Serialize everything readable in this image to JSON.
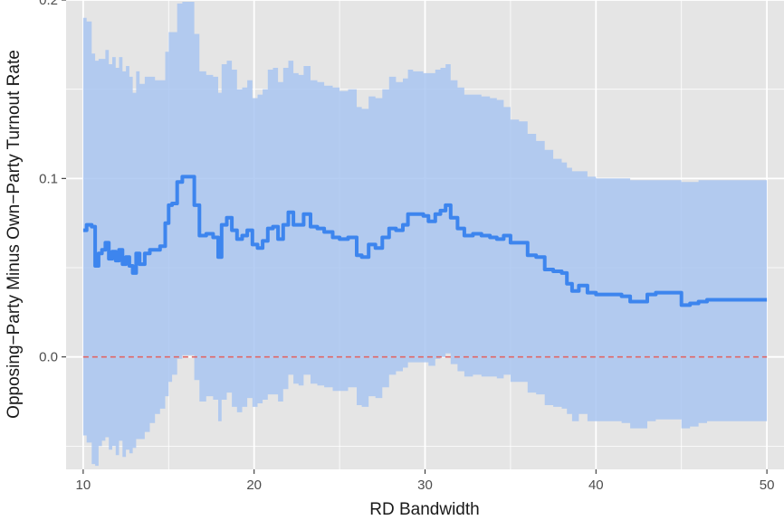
{
  "chart_data": {
    "type": "line",
    "title": "",
    "xlabel": "RD Bandwidth",
    "ylabel": "Opposing−Party Minus Own−Party Turnout Rate",
    "xlim": [
      9,
      51
    ],
    "ylim": [
      -0.063,
      0.2
    ],
    "x_ticks": [
      10,
      20,
      30,
      40,
      50
    ],
    "x_tick_labels": [
      "10",
      "20",
      "30",
      "40",
      "50"
    ],
    "y_ticks": [
      0.0,
      0.1,
      0.2
    ],
    "y_tick_labels": [
      "0.0",
      "0.1",
      "0.2"
    ],
    "grid": true,
    "reference_line": {
      "y": 0,
      "style": "dashed",
      "color": "#e06666"
    },
    "colors": {
      "panel_background": "#e5e5e5",
      "grid": "#ffffff",
      "line": "#3d85ee",
      "ribbon": "#a9c6f1"
    },
    "series": [
      {
        "x": [
          10.0,
          10.2,
          10.5,
          10.7,
          10.9,
          11.1,
          11.3,
          11.5,
          11.7,
          11.9,
          12.1,
          12.3,
          12.5,
          12.7,
          12.9,
          13.1,
          13.3,
          13.6,
          13.9,
          14.2,
          14.5,
          14.8,
          15.0,
          15.2,
          15.5,
          15.8,
          16.1,
          16.5,
          16.8,
          17.2,
          17.6,
          17.9,
          18.1,
          18.4,
          18.7,
          19.0,
          19.3,
          19.6,
          19.9,
          20.2,
          20.5,
          20.8,
          21.1,
          21.4,
          21.7,
          22.0,
          22.3,
          22.6,
          22.9,
          23.3,
          23.7,
          24.1,
          24.6,
          25.0,
          25.5,
          26.0,
          26.3,
          26.7,
          27.1,
          27.5,
          27.9,
          28.3,
          28.7,
          29.0,
          29.3,
          29.6,
          29.9,
          30.2,
          30.6,
          30.9,
          31.2,
          31.5,
          31.9,
          32.3,
          32.8,
          33.3,
          33.8,
          34.2,
          34.6,
          35.0,
          35.5,
          36.0,
          36.5,
          37.0,
          37.5,
          38.0,
          38.3,
          38.6,
          39.0,
          39.5,
          40.0,
          40.5,
          41.0,
          41.5,
          42.0,
          42.5,
          43.0,
          43.5,
          44.0,
          44.5,
          45.0,
          45.5,
          46.0,
          46.5,
          47.0,
          47.5,
          48.0,
          48.5,
          49.0,
          49.5,
          50.0
        ],
        "y": [
          0.071,
          0.074,
          0.073,
          0.051,
          0.058,
          0.06,
          0.064,
          0.055,
          0.059,
          0.054,
          0.06,
          0.052,
          0.056,
          0.051,
          0.047,
          0.058,
          0.052,
          0.058,
          0.06,
          0.06,
          0.062,
          0.075,
          0.085,
          0.086,
          0.098,
          0.101,
          0.101,
          0.085,
          0.068,
          0.069,
          0.067,
          0.056,
          0.074,
          0.078,
          0.071,
          0.066,
          0.068,
          0.071,
          0.063,
          0.061,
          0.065,
          0.072,
          0.073,
          0.066,
          0.074,
          0.081,
          0.074,
          0.074,
          0.08,
          0.073,
          0.072,
          0.07,
          0.067,
          0.066,
          0.067,
          0.057,
          0.056,
          0.063,
          0.061,
          0.067,
          0.072,
          0.071,
          0.074,
          0.08,
          0.08,
          0.08,
          0.079,
          0.076,
          0.08,
          0.082,
          0.085,
          0.078,
          0.072,
          0.068,
          0.069,
          0.068,
          0.067,
          0.066,
          0.068,
          0.064,
          0.064,
          0.057,
          0.056,
          0.049,
          0.048,
          0.047,
          0.041,
          0.037,
          0.04,
          0.036,
          0.035,
          0.035,
          0.035,
          0.034,
          0.031,
          0.031,
          0.035,
          0.036,
          0.036,
          0.036,
          0.029,
          0.03,
          0.031,
          0.032,
          0.032,
          0.032,
          0.032,
          0.032,
          0.032,
          0.032,
          0.032
        ],
        "lower": [
          -0.044,
          -0.048,
          -0.06,
          -0.061,
          -0.05,
          -0.047,
          -0.045,
          -0.052,
          -0.05,
          -0.055,
          -0.047,
          -0.056,
          -0.052,
          -0.054,
          -0.051,
          -0.046,
          -0.046,
          -0.042,
          -0.037,
          -0.032,
          -0.029,
          -0.022,
          -0.014,
          -0.01,
          -0.001,
          0.001,
          0.001,
          -0.013,
          -0.025,
          -0.022,
          -0.024,
          -0.036,
          -0.024,
          -0.02,
          -0.028,
          -0.031,
          -0.028,
          -0.023,
          -0.028,
          -0.026,
          -0.024,
          -0.021,
          -0.021,
          -0.025,
          -0.018,
          -0.01,
          -0.015,
          -0.016,
          -0.01,
          -0.015,
          -0.016,
          -0.017,
          -0.019,
          -0.019,
          -0.017,
          -0.027,
          -0.028,
          -0.022,
          -0.023,
          -0.017,
          -0.01,
          -0.008,
          -0.006,
          -0.003,
          -0.003,
          -0.003,
          -0.003,
          -0.005,
          -0.001,
          0.0,
          0.002,
          -0.004,
          -0.008,
          -0.011,
          -0.01,
          -0.011,
          -0.011,
          -0.012,
          -0.01,
          -0.014,
          -0.014,
          -0.02,
          -0.021,
          -0.027,
          -0.028,
          -0.029,
          -0.032,
          -0.036,
          -0.032,
          -0.036,
          -0.036,
          -0.036,
          -0.036,
          -0.037,
          -0.04,
          -0.04,
          -0.036,
          -0.035,
          -0.035,
          -0.035,
          -0.04,
          -0.039,
          -0.037,
          -0.036,
          -0.036,
          -0.036,
          -0.036,
          -0.036,
          -0.036,
          -0.036,
          -0.036
        ],
        "upper": [
          0.19,
          0.188,
          0.17,
          0.166,
          0.167,
          0.167,
          0.172,
          0.164,
          0.168,
          0.162,
          0.168,
          0.16,
          0.163,
          0.157,
          0.148,
          0.16,
          0.153,
          0.157,
          0.157,
          0.155,
          0.155,
          0.171,
          0.182,
          0.182,
          0.198,
          0.199,
          0.199,
          0.181,
          0.16,
          0.158,
          0.157,
          0.148,
          0.164,
          0.166,
          0.161,
          0.15,
          0.151,
          0.155,
          0.145,
          0.147,
          0.15,
          0.161,
          0.162,
          0.154,
          0.162,
          0.166,
          0.159,
          0.158,
          0.163,
          0.155,
          0.154,
          0.152,
          0.151,
          0.149,
          0.15,
          0.14,
          0.139,
          0.146,
          0.145,
          0.15,
          0.157,
          0.154,
          0.156,
          0.161,
          0.16,
          0.16,
          0.159,
          0.159,
          0.161,
          0.162,
          0.164,
          0.155,
          0.151,
          0.147,
          0.147,
          0.146,
          0.145,
          0.144,
          0.14,
          0.133,
          0.132,
          0.125,
          0.121,
          0.116,
          0.111,
          0.109,
          0.106,
          0.104,
          0.104,
          0.101,
          0.1,
          0.1,
          0.1,
          0.1,
          0.099,
          0.099,
          0.099,
          0.099,
          0.099,
          0.099,
          0.098,
          0.098,
          0.099,
          0.099,
          0.099,
          0.099,
          0.099,
          0.099,
          0.099,
          0.099,
          0.099
        ]
      }
    ]
  }
}
